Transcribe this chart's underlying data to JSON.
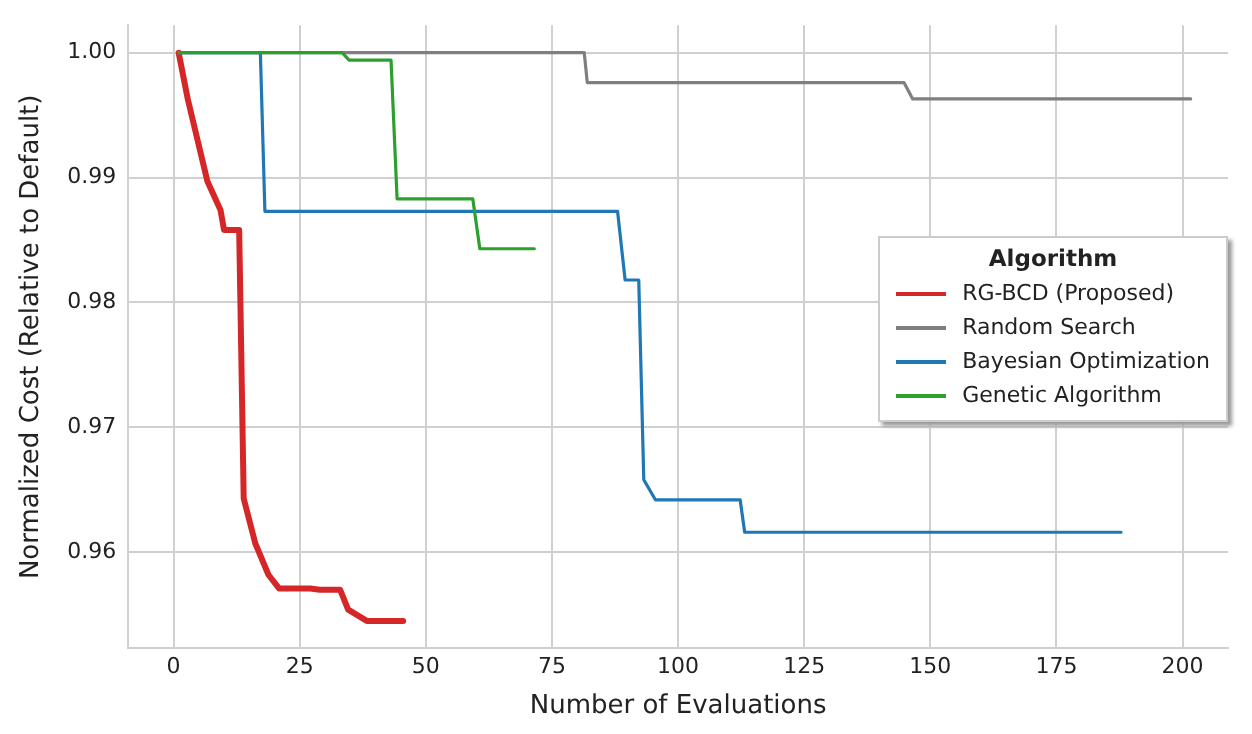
{
  "chart_data": {
    "type": "line",
    "xlabel": "Number of Evaluations",
    "ylabel": "Normalized Cost (Relative to Default)",
    "legend_title": "Algorithm",
    "legend": "right",
    "grid": true,
    "marker": "none",
    "line_style": "solid",
    "xlim": [
      -9,
      209
    ],
    "xticks": [
      0,
      25,
      50,
      75,
      100,
      125,
      150,
      175,
      200
    ],
    "ylim": [
      0.9523,
      1.0022
    ],
    "yticks": [
      {
        "value": 0.96,
        "label": "0.96"
      },
      {
        "value": 0.97,
        "label": "0.97"
      },
      {
        "value": 0.98,
        "label": "0.98"
      },
      {
        "value": 0.99,
        "label": "0.99"
      },
      {
        "value": 1.0,
        "label": "1.00"
      }
    ],
    "series": [
      {
        "name": "RG-BCD (Proposed)",
        "color": "#d62728",
        "x": [
          1,
          2.8,
          6.7,
          9.3,
          10,
          13,
          13.9,
          16.2,
          18.8,
          20.9,
          27.1,
          29,
          33,
          34.6,
          38.3,
          45.5
        ],
        "values": [
          1.0,
          0.9963,
          0.9897,
          0.9874,
          0.9858,
          0.9858,
          0.9643,
          0.9607,
          0.9582,
          0.9571,
          0.9571,
          0.957,
          0.957,
          0.9554,
          0.9545,
          0.9545
        ]
      },
      {
        "name": "Random Search",
        "color": "#7f7f7f",
        "x": [
          1,
          81.4,
          82,
          144.8,
          146.5,
          201.6
        ],
        "values": [
          1.0,
          1.0,
          0.9976,
          0.9976,
          0.9963,
          0.9963
        ]
      },
      {
        "name": "Bayesian Optimization",
        "color": "#1f77b4",
        "x": [
          1,
          17.2,
          18.1,
          88,
          89.5,
          92.2,
          93.2,
          95.5,
          112.3,
          113.2,
          187.8
        ],
        "values": [
          1.0,
          1.0,
          0.9873,
          0.9873,
          0.9818,
          0.9818,
          0.9658,
          0.9642,
          0.9642,
          0.9616,
          0.9616
        ]
      },
      {
        "name": "Genetic Algorithm",
        "color": "#2ca02c",
        "x": [
          1,
          33.4,
          34.8,
          43.1,
          44.3,
          59.3,
          60.7,
          71.5
        ],
        "values": [
          1.0,
          1.0,
          0.9994,
          0.9994,
          0.9883,
          0.9883,
          0.9843,
          0.9843
        ]
      }
    ]
  }
}
